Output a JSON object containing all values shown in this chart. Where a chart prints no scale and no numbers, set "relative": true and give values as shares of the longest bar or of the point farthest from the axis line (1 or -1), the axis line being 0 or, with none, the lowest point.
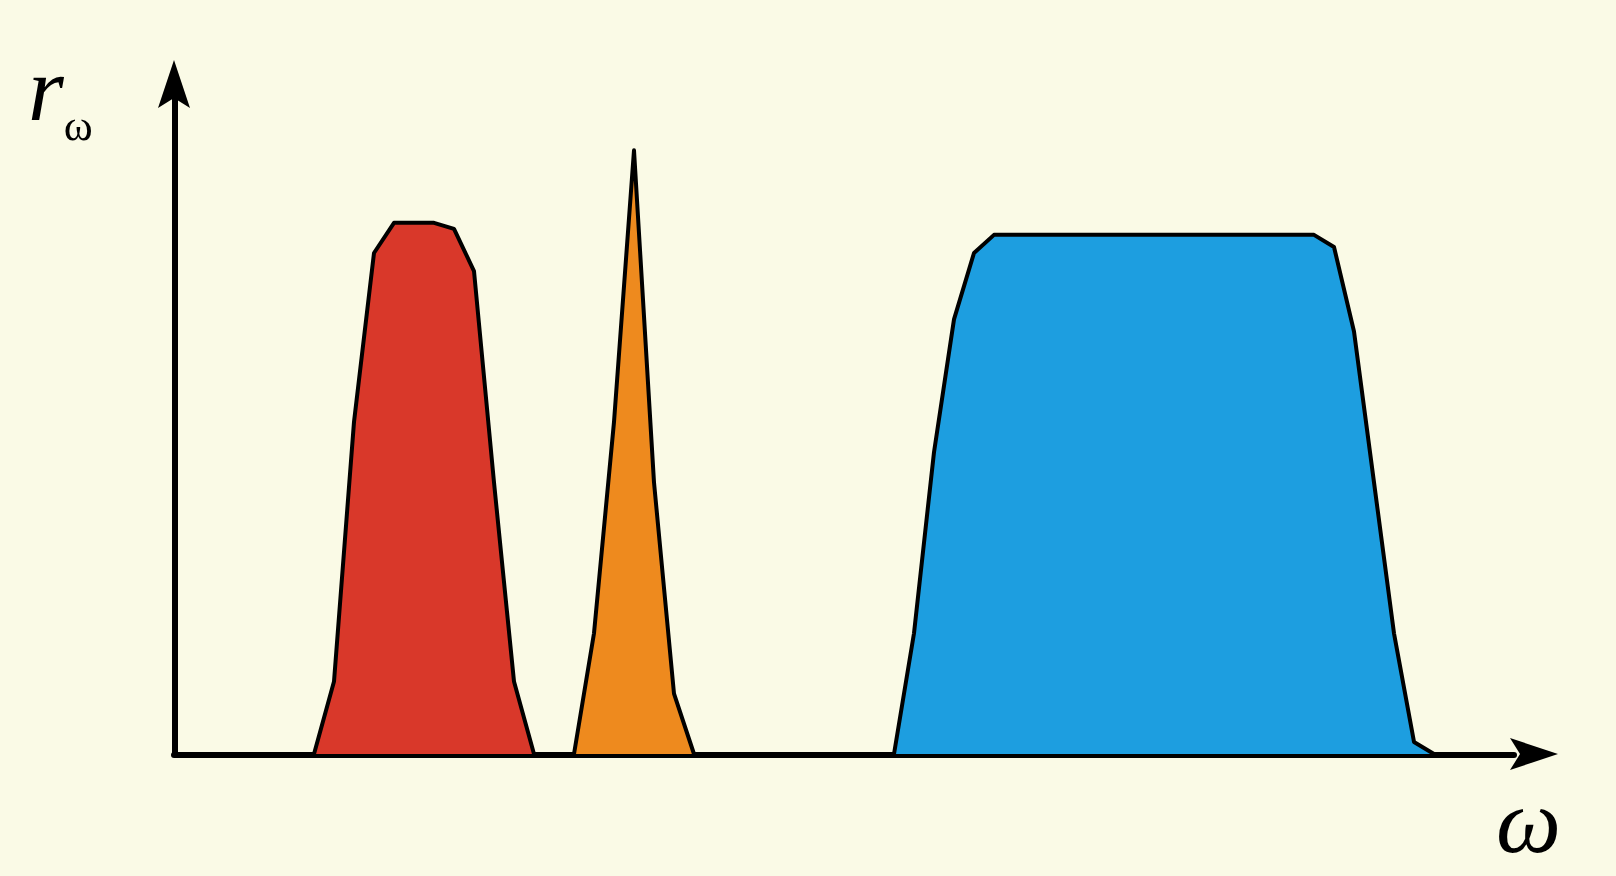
{
  "chart_data": {
    "type": "area",
    "relative": true,
    "xlabel": "ω",
    "ylabel": "r$_{ω}$",
    "grid": false,
    "categories": [
      null,
      null,
      null,
      null,
      null,
      null,
      null,
      null,
      null,
      null,
      null,
      null,
      null,
      null,
      null,
      null,
      null,
      null,
      null,
      null,
      null,
      null,
      null,
      null,
      null,
      null,
      null,
      null,
      null,
      null,
      null,
      null,
      null,
      null,
      null,
      null,
      null,
      null,
      null,
      null,
      null,
      null,
      null,
      null,
      null,
      null,
      null,
      null,
      null,
      null,
      null,
      null,
      null,
      null,
      null,
      null,
      null,
      null,
      null,
      null,
      null,
      null,
      null,
      null,
      null,
      null,
      null,
      null
    ],
    "series": [
      {
        "color": "#d9382a",
        "values": [
          null,
          null,
          null,
          null,
          null,
          null,
          null,
          0,
          0.12,
          0.55,
          0.83,
          0.88,
          0.88,
          0.88,
          0.87,
          0.8,
          0.45,
          0.12,
          0,
          null,
          null,
          null,
          null,
          null,
          null,
          null,
          null,
          null,
          null,
          null,
          null,
          null,
          null,
          null,
          null,
          null,
          null,
          null,
          null,
          null,
          null,
          null,
          null,
          null,
          null,
          null,
          null,
          null,
          null,
          null,
          null,
          null,
          null,
          null,
          null,
          null,
          null,
          null,
          null,
          null,
          null,
          null,
          null,
          null,
          null,
          null,
          null,
          null
        ]
      },
      {
        "color": "#ee8a1e",
        "values": [
          null,
          null,
          null,
          null,
          null,
          null,
          null,
          null,
          null,
          null,
          null,
          null,
          null,
          null,
          null,
          null,
          null,
          null,
          null,
          null,
          0,
          0.2,
          0.55,
          1,
          0.45,
          0.1,
          0,
          null,
          null,
          null,
          null,
          null,
          null,
          null,
          null,
          null,
          null,
          null,
          null,
          null,
          null,
          null,
          null,
          null,
          null,
          null,
          null,
          null,
          null,
          null,
          null,
          null,
          null,
          null,
          null,
          null,
          null,
          null,
          null,
          null,
          null,
          null,
          null,
          null,
          null,
          null,
          null,
          null
        ]
      },
      {
        "color": "#1d9ee0",
        "values": [
          null,
          null,
          null,
          null,
          null,
          null,
          null,
          null,
          null,
          null,
          null,
          null,
          null,
          null,
          null,
          null,
          null,
          null,
          null,
          null,
          null,
          null,
          null,
          null,
          null,
          null,
          null,
          null,
          null,
          null,
          null,
          null,
          null,
          null,
          null,
          null,
          0,
          0.2,
          0.5,
          0.72,
          0.83,
          0.86,
          0.86,
          0.86,
          0.86,
          0.86,
          0.86,
          0.86,
          0.86,
          0.86,
          0.86,
          0.86,
          0.86,
          0.86,
          0.86,
          0.86,
          0.86,
          0.86,
          0.84,
          0.7,
          0.45,
          0.2,
          0.02,
          0,
          null,
          null,
          null,
          null
        ]
      }
    ]
  }
}
